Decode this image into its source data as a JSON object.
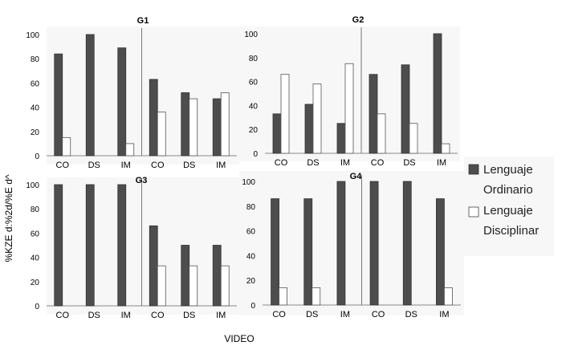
{
  "chart_data": {
    "type": "bar",
    "xlabel": "VIDEO",
    "ylabel": "%KZE d:%2d/%E d^",
    "ylim": [
      0,
      100
    ],
    "yticks": [
      0,
      20,
      40,
      60,
      80,
      100
    ],
    "legend": {
      "placement": "right",
      "entries": [
        {
          "name": "Lenguaje Ordinario",
          "lines": [
            "Lenguaje",
            "Ordinario"
          ],
          "color": "#4d4d4d"
        },
        {
          "name": "Lenguaje Disciplinar",
          "lines": [
            "Lenguaje",
            "Disciplinar"
          ],
          "color": "#ffffff"
        }
      ]
    },
    "panels": [
      {
        "title": "G1",
        "categories": [
          "CO",
          "DS",
          "IM",
          "CO",
          "DS",
          "IM"
        ],
        "series": [
          {
            "name": "Lenguaje Ordinario",
            "values": [
              84,
              100,
              89,
              63,
              52,
              47
            ]
          },
          {
            "name": "Lenguaje Disciplinar",
            "values": [
              15,
              0,
              10,
              36,
              47,
              52
            ]
          }
        ]
      },
      {
        "title": "G2",
        "categories": [
          "CO",
          "DS",
          "IM",
          "CO",
          "DS",
          "IM"
        ],
        "series": [
          {
            "name": "Lenguaje Ordinario",
            "values": [
              33,
              41,
              25,
              66,
              74,
              100
            ]
          },
          {
            "name": "Lenguaje Disciplinar",
            "values": [
              66,
              58,
              75,
              33,
              25,
              8
            ]
          }
        ]
      },
      {
        "title": "G3",
        "categories": [
          "CO",
          "DS",
          "IM",
          "CO",
          "DS",
          "IM"
        ],
        "series": [
          {
            "name": "Lenguaje Ordinario",
            "values": [
              100,
              100,
              100,
              66,
              50,
              50
            ]
          },
          {
            "name": "Lenguaje Disciplinar",
            "values": [
              0,
              0,
              0,
              33,
              33,
              33
            ]
          }
        ]
      },
      {
        "title": "G4",
        "categories": [
          "CO",
          "DS",
          "IM",
          "CO",
          "DS",
          "IM"
        ],
        "series": [
          {
            "name": "Lenguaje Ordinario",
            "values": [
              86,
              86,
              100,
              100,
              100,
              86
            ]
          },
          {
            "name": "Lenguaje Disciplinar",
            "values": [
              14,
              14,
              0,
              0,
              0,
              14
            ]
          }
        ]
      }
    ]
  }
}
